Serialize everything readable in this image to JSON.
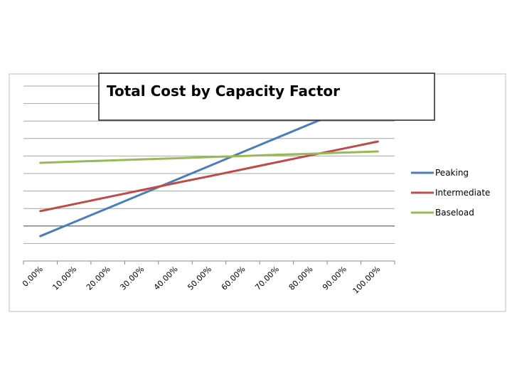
{
  "chart_data": {
    "type": "line",
    "title": "Total Cost by Capacity Factor",
    "xlabel": "",
    "ylabel": "",
    "categories": [
      "0.00%",
      "10.00%",
      "20.00%",
      "30.00%",
      "40.00%",
      "50.00%",
      "60.00%",
      "70.00%",
      "80.00%",
      "90.00%",
      "100.00%"
    ],
    "ylim": [
      0,
      10
    ],
    "y_tick_labels_shown": false,
    "grid": true,
    "legend": "right",
    "series": [
      {
        "name": "Peaking",
        "color": "#4a7ebb",
        "values": [
          1.42,
          2.22,
          3.02,
          3.82,
          4.62,
          5.42,
          6.23,
          7.03,
          7.83,
          8.63,
          9.43
        ]
      },
      {
        "name": "Intermediate",
        "color": "#be4b48",
        "values": [
          2.85,
          3.25,
          3.65,
          4.05,
          4.45,
          4.84,
          5.24,
          5.64,
          6.04,
          6.43,
          6.83
        ]
      },
      {
        "name": "Baseload",
        "color": "#98b954",
        "values": [
          5.61,
          5.68,
          5.74,
          5.81,
          5.87,
          5.94,
          6.0,
          6.07,
          6.13,
          6.2,
          6.26
        ]
      }
    ]
  }
}
